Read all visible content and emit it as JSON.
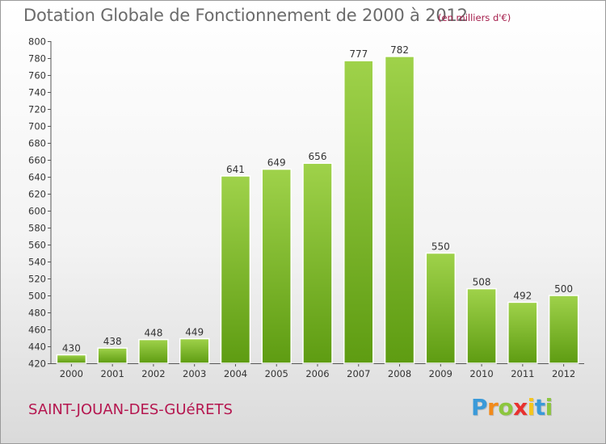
{
  "title": "Dotation Globale de Fonctionnement de 2000 à 2012",
  "subtitle": "(en milliers d'€)",
  "commune": "SAINT-JOUAN-DES-GUéRETS",
  "logo": {
    "letters": [
      "P",
      "r",
      "o",
      "x",
      "i",
      "t",
      "i"
    ],
    "colors": [
      "#3a9ad9",
      "#f28a1a",
      "#8cc63f",
      "#e8312f",
      "#f5c51d",
      "#3a9ad9",
      "#8cc63f"
    ]
  },
  "colors": {
    "bar_top": "#9fd24a",
    "bar_bottom": "#5e9c12",
    "axis": "#555555",
    "grid": "#cccccc"
  },
  "chart_data": {
    "type": "bar",
    "title": "Dotation Globale de Fonctionnement de 2000 à 2012",
    "subtitle": "(en milliers d'€)",
    "categories": [
      "2000",
      "2001",
      "2002",
      "2003",
      "2004",
      "2005",
      "2006",
      "2007",
      "2008",
      "2009",
      "2010",
      "2011",
      "2012"
    ],
    "values": [
      430,
      438,
      448,
      449,
      641,
      649,
      656,
      777,
      782,
      550,
      508,
      492,
      500
    ],
    "ylim": [
      420,
      800
    ],
    "ytick_step": 20,
    "xlabel": "",
    "ylabel": "",
    "grid": false,
    "legend": "none"
  }
}
